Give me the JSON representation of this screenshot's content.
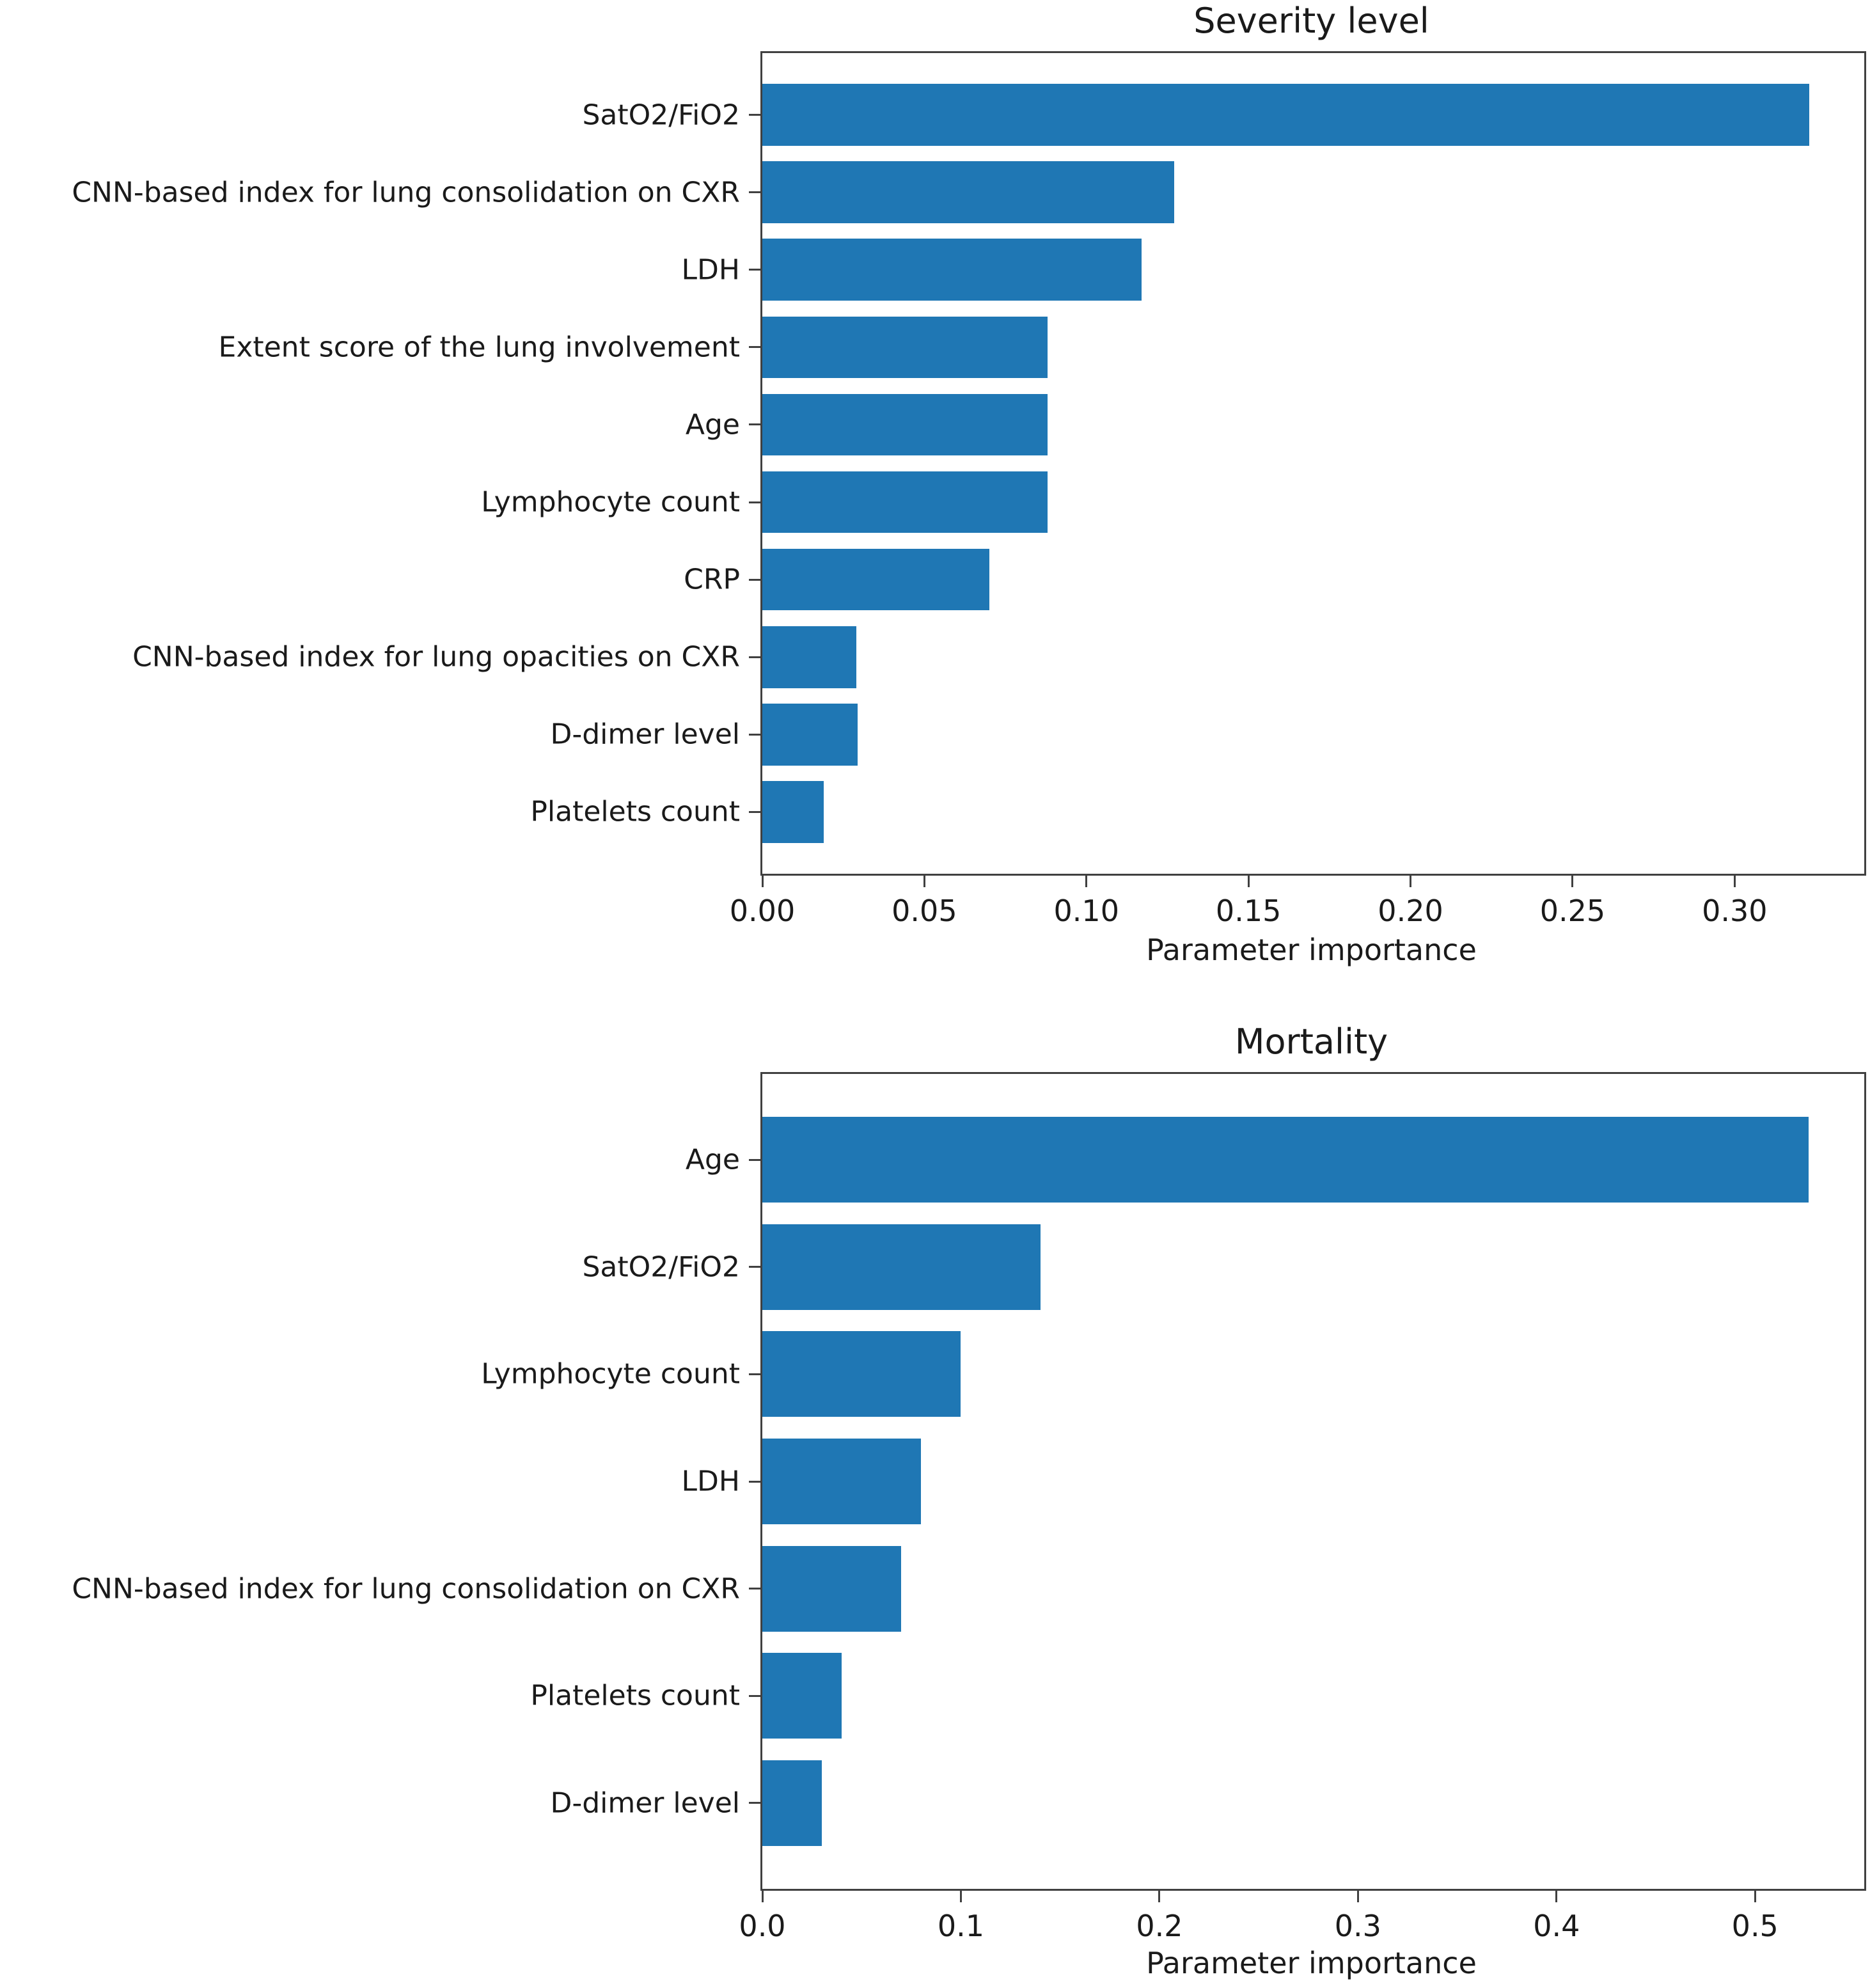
{
  "page": {
    "background": "#ffffff",
    "text_color": "#1a1a1a",
    "axis_color": "#404040"
  },
  "chart_data": [
    {
      "type": "bar",
      "orientation": "horizontal",
      "title": "Severity level",
      "xlabel": "Parameter importance",
      "categories": [
        "SatO2/FiO2",
        "CNN-based index for lung consolidation on CXR",
        "LDH",
        "Extent score of the lung involvement",
        "Age",
        "Lymphocyte count",
        "CRP",
        "CNN-based index for lung opacities on CXR",
        "D-dimer level",
        "Platelets count"
      ],
      "values": [
        0.323,
        0.127,
        0.117,
        0.088,
        0.088,
        0.088,
        0.07,
        0.029,
        0.0295,
        0.019
      ],
      "xlim": [
        0,
        0.34
      ],
      "tick_values": [
        0.0,
        0.05,
        0.1,
        0.15,
        0.2,
        0.25,
        0.3
      ],
      "tick_labels": [
        "0.00",
        "0.05",
        "0.10",
        "0.15",
        "0.20",
        "0.25",
        "0.30"
      ],
      "bar_color": "#1f77b4",
      "grid": false,
      "legend": null
    },
    {
      "type": "bar",
      "orientation": "horizontal",
      "title": "Mortality",
      "xlabel": "Parameter importance",
      "categories": [
        "Age",
        "SatO2/FiO2",
        "Lymphocyte count",
        "LDH",
        "CNN-based index for lung consolidation on CXR",
        "Platelets count",
        "D-dimer level"
      ],
      "values": [
        0.527,
        0.14,
        0.1,
        0.08,
        0.07,
        0.04,
        0.03
      ],
      "xlim": [
        0,
        0.555
      ],
      "tick_values": [
        0.0,
        0.1,
        0.2,
        0.3,
        0.4,
        0.5
      ],
      "tick_labels": [
        "0.0",
        "0.1",
        "0.2",
        "0.3",
        "0.4",
        "0.5"
      ],
      "bar_color": "#1f77b4",
      "grid": false,
      "legend": null
    }
  ]
}
